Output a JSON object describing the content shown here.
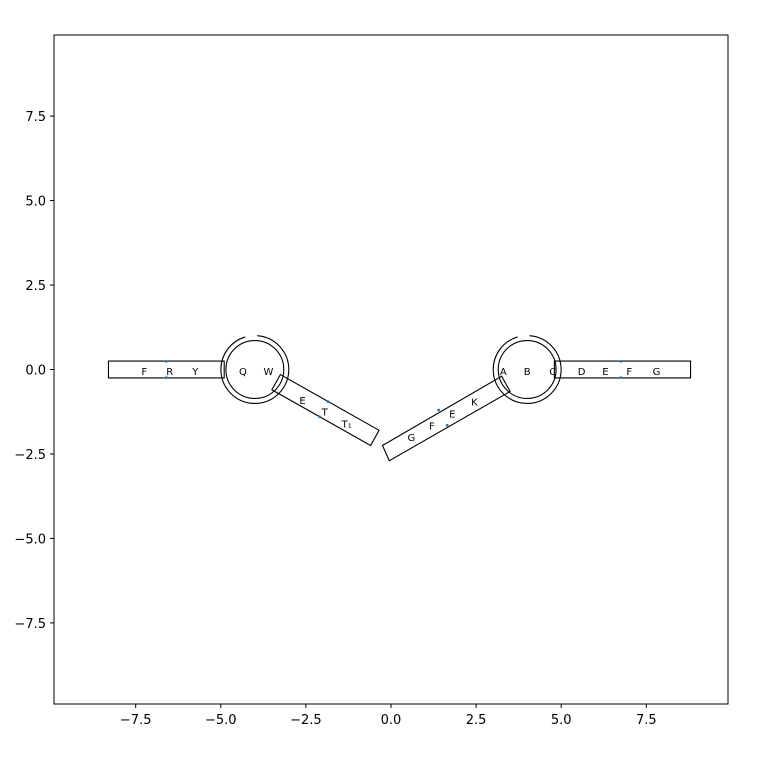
{
  "chart_data": {
    "type": "diagram",
    "xlim": [
      -9.9,
      9.9
    ],
    "ylim": [
      -9.9,
      9.9
    ],
    "x_ticks": [
      -7.5,
      -5.0,
      -2.5,
      0.0,
      2.5,
      5.0,
      7.5
    ],
    "y_ticks": [
      -7.5,
      -5.0,
      -2.5,
      0.0,
      2.5,
      5.0,
      7.5
    ],
    "x_tick_labels": [
      "−7.5",
      "−5.0",
      "−2.5",
      "0.0",
      "2.5",
      "5.0",
      "7.5"
    ],
    "y_tick_labels": [
      "−7.5",
      "−5.0",
      "−2.5",
      "0.0",
      "2.5",
      "5.0",
      "7.5"
    ],
    "grid": false,
    "left_structure": {
      "circle": {
        "center": [
          -4.0,
          0.0
        ],
        "radius": 0.85
      },
      "stem_labels": [
        {
          "text": "F",
          "x": -7.25,
          "y": -0.05
        },
        {
          "text": "R",
          "x": -6.5,
          "y": -0.05
        },
        {
          "text": "Y",
          "x": -5.75,
          "y": -0.05
        }
      ],
      "loop_labels": [
        {
          "text": "Q",
          "x": -4.35,
          "y": -0.05
        },
        {
          "text": "W",
          "x": -3.6,
          "y": -0.05
        }
      ],
      "diagonal_labels": [
        {
          "text": "E",
          "x": -2.6,
          "y": -0.9
        },
        {
          "text": "T",
          "x": -1.95,
          "y": -1.25
        },
        {
          "text": "T₁",
          "x": -1.3,
          "y": -1.6
        }
      ],
      "markers": [
        [
          -6.6,
          0.24
        ],
        [
          -6.6,
          -0.24
        ],
        [
          -1.85,
          -0.95
        ],
        [
          -2.1,
          -1.4
        ]
      ]
    },
    "right_structure": {
      "circle": {
        "center": [
          4.0,
          0.0
        ],
        "radius": 0.85
      },
      "stem_labels": [
        {
          "text": "C",
          "x": 4.75,
          "y": -0.05
        },
        {
          "text": "D",
          "x": 5.6,
          "y": -0.05
        },
        {
          "text": "E",
          "x": 6.3,
          "y": -0.05
        },
        {
          "text": "F",
          "x": 7.0,
          "y": -0.05
        },
        {
          "text": "G",
          "x": 7.8,
          "y": -0.05
        }
      ],
      "loop_labels": [
        {
          "text": "A",
          "x": 3.3,
          "y": -0.05
        },
        {
          "text": "B",
          "x": 4.0,
          "y": -0.05
        }
      ],
      "diagonal_labels": [
        {
          "text": "K",
          "x": 2.45,
          "y": -0.95
        },
        {
          "text": "E",
          "x": 1.8,
          "y": -1.3
        },
        {
          "text": "F",
          "x": 1.2,
          "y": -1.65
        },
        {
          "text": "G",
          "x": 0.6,
          "y": -2.0
        }
      ],
      "markers": [
        [
          6.75,
          0.24
        ],
        [
          6.75,
          -0.24
        ],
        [
          1.4,
          -1.2
        ],
        [
          1.65,
          -1.65
        ]
      ]
    }
  }
}
